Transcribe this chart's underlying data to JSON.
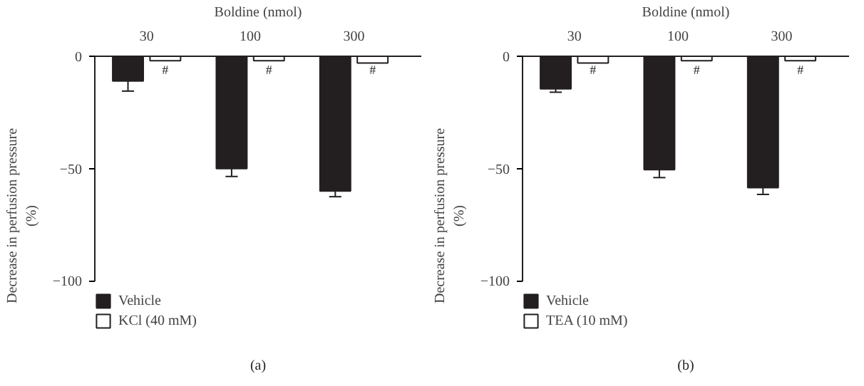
{
  "chart_data": [
    {
      "type": "bar",
      "xlabel": "Boldine (nmol)",
      "ylabel": "Decrease in perfusion pressure (%)",
      "categories": [
        "30",
        "100",
        "300"
      ],
      "ylim": [
        -100,
        0
      ],
      "yticks": [
        0,
        -50,
        -100
      ],
      "legend": "bottom",
      "grid": false,
      "series": [
        {
          "name": "Vehicle",
          "color": "#231f20",
          "values": [
            -11,
            -50,
            -60
          ],
          "errors": [
            [
              -15.5,
              -11
            ],
            [
              -53.5,
              -50
            ],
            [
              -62.5,
              -60
            ]
          ]
        },
        {
          "name": "KCl (40 mM)",
          "color": "#ffffff",
          "values": [
            -2,
            -2,
            -3
          ]
        }
      ],
      "annotations": [
        {
          "text": "#",
          "x": "30",
          "y": -6
        },
        {
          "text": "#",
          "x": "100",
          "y": -6
        },
        {
          "text": "#",
          "x": "300",
          "y": -6
        },
        "(a)"
      ]
    },
    {
      "type": "bar",
      "xlabel": "Boldine (nmol)",
      "ylabel": "Decrease in perfusion pressure (%)",
      "categories": [
        "30",
        "100",
        "300"
      ],
      "ylim": [
        -100,
        0
      ],
      "yticks": [
        0,
        -50,
        -100
      ],
      "legend": "bottom",
      "grid": false,
      "series": [
        {
          "name": "Vehicle",
          "color": "#231f20",
          "values": [
            -14.5,
            -50.5,
            -58.5
          ],
          "errors": [
            [
              -16,
              -14.5
            ],
            [
              -54,
              -50.5
            ],
            [
              -61.5,
              -58.5
            ]
          ]
        },
        {
          "name": "TEA (10 mM)",
          "color": "#ffffff",
          "values": [
            -3,
            -2,
            -2
          ]
        }
      ],
      "annotations": [
        {
          "text": "#",
          "x": "30",
          "y": -6
        },
        {
          "text": "#",
          "x": "100",
          "y": -6
        },
        {
          "text": "#",
          "x": "300",
          "y": -6
        },
        "(b)"
      ]
    }
  ]
}
